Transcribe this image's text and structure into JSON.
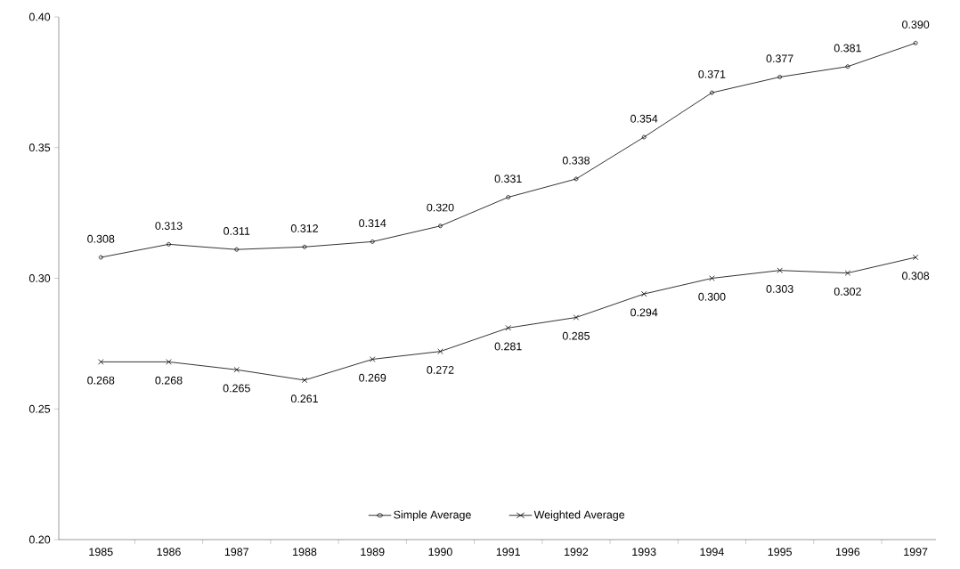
{
  "chart_data": {
    "type": "line",
    "categories": [
      "1985",
      "1986",
      "1987",
      "1988",
      "1989",
      "1990",
      "1991",
      "1992",
      "1993",
      "1994",
      "1995",
      "1996",
      "1997"
    ],
    "series": [
      {
        "name": "Simple Average",
        "color": "#000000",
        "marker": "circle",
        "values": [
          0.308,
          0.313,
          0.311,
          0.312,
          0.314,
          0.32,
          0.331,
          0.338,
          0.354,
          0.371,
          0.377,
          0.381,
          0.39
        ],
        "value_labels": [
          "0.308",
          "0.313",
          "0.311",
          "0.312",
          "0.314",
          "0.320",
          "0.331",
          "0.338",
          "0.354",
          "0.371",
          "0.377",
          "0.381",
          "0.390"
        ]
      },
      {
        "name": "Weighted Average",
        "color": "#000000",
        "marker": "cross",
        "values": [
          0.268,
          0.268,
          0.265,
          0.261,
          0.269,
          0.272,
          0.281,
          0.285,
          0.294,
          0.3,
          0.303,
          0.302,
          0.308
        ],
        "value_labels": [
          "0.268",
          "0.268",
          "0.265",
          "0.261",
          "0.269",
          "0.272",
          "0.281",
          "0.285",
          "0.294",
          "0.300",
          "0.303",
          "0.302",
          "0.308"
        ]
      }
    ],
    "ylim": [
      0.2,
      0.4
    ],
    "yticks": [
      {
        "value": 0.2,
        "label": "0.20"
      },
      {
        "value": 0.25,
        "label": "0.25"
      },
      {
        "value": 0.3,
        "label": "0.30"
      },
      {
        "value": 0.35,
        "label": "0.35"
      },
      {
        "value": 0.4,
        "label": "0.40"
      }
    ],
    "grid": false,
    "legend": "bottom",
    "line_style": "solid"
  }
}
